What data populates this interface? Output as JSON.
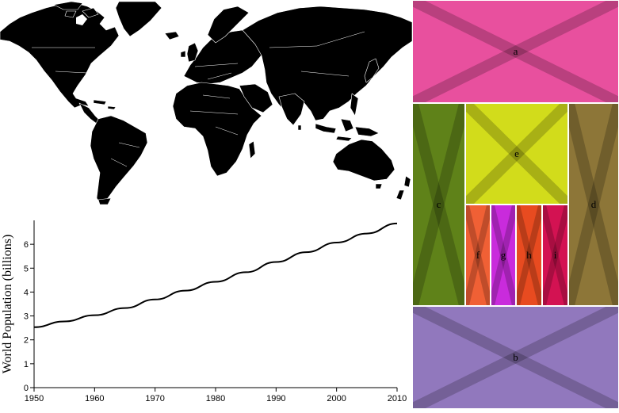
{
  "map": {
    "land_color": "#000000",
    "border_color": "#ffffff"
  },
  "chart_data": {
    "type": "line",
    "ylabel": "World Population (billions)",
    "xlabel": "",
    "xlim": [
      1950,
      2010
    ],
    "ylim": [
      0,
      7
    ],
    "x_ticks": [
      "1950",
      "1960",
      "1970",
      "1980",
      "1990",
      "2000",
      "2010"
    ],
    "y_ticks": [
      "0",
      "1",
      "2",
      "3",
      "4",
      "5",
      "6"
    ],
    "x": [
      1950,
      1955,
      1960,
      1965,
      1970,
      1975,
      1980,
      1985,
      1990,
      1995,
      2000,
      2005,
      2010
    ],
    "values": [
      2.53,
      2.77,
      3.03,
      3.33,
      3.69,
      4.06,
      4.43,
      4.83,
      5.26,
      5.67,
      6.07,
      6.45,
      6.87
    ],
    "line_color": "#000000"
  },
  "treemap": {
    "cells": [
      {
        "label": "a",
        "color": "#e8509e"
      },
      {
        "label": "b",
        "color": "#9178bd"
      },
      {
        "label": "c",
        "color": "#5f8219"
      },
      {
        "label": "d",
        "color": "#8d7638"
      },
      {
        "label": "e",
        "color": "#d2dc1b"
      },
      {
        "label": "f",
        "color": "#f06035"
      },
      {
        "label": "g",
        "color": "#c92bdc"
      },
      {
        "label": "h",
        "color": "#e84b20"
      },
      {
        "label": "i",
        "color": "#d31252"
      }
    ]
  }
}
